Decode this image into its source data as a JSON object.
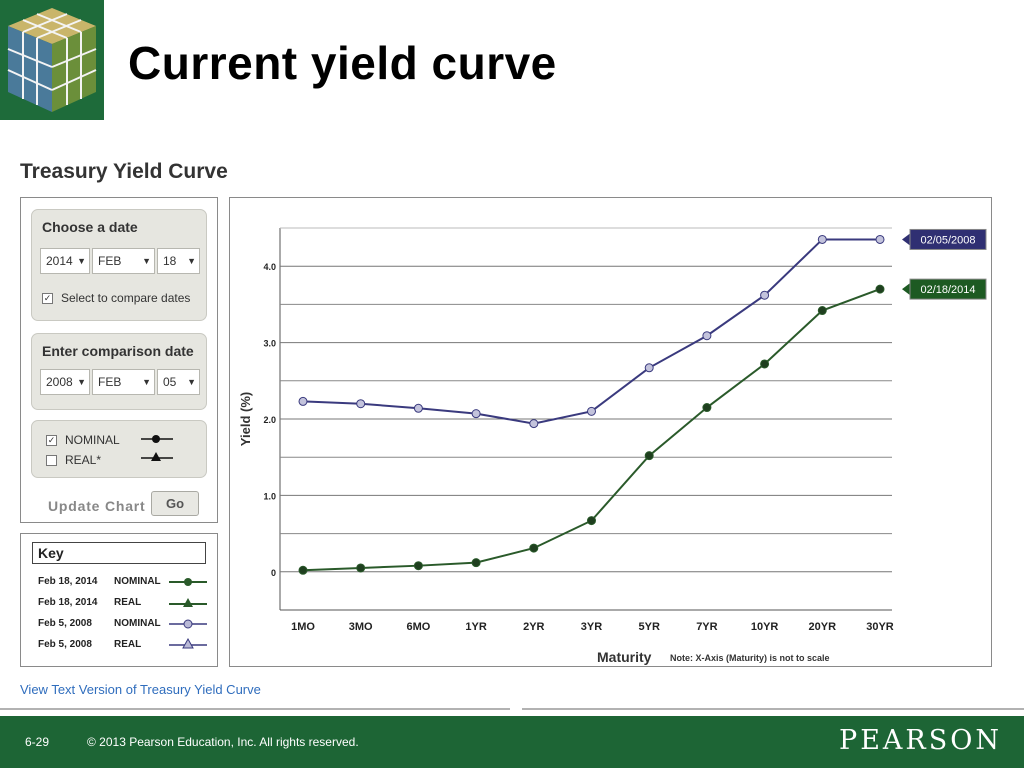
{
  "slide": {
    "title": "Current yield curve",
    "page_number": "6-29",
    "copyright": "© 2013 Pearson Education, Inc. All rights reserved.",
    "brand": "PEARSON"
  },
  "panel": {
    "title": "Treasury Yield Curve",
    "choose_date": {
      "header": "Choose a date",
      "year": "2014",
      "month": "FEB",
      "day": "18",
      "compare_checked": true,
      "compare_label": "Select to compare dates"
    },
    "comparison_date": {
      "header": "Enter comparison date",
      "year": "2008",
      "month": "FEB",
      "day": "05"
    },
    "series_toggle": {
      "nominal_label": "NOMINAL",
      "nominal_checked": true,
      "real_label": "REAL*",
      "real_checked": false
    },
    "update_label": "Update Chart",
    "go_label": "Go",
    "key": {
      "header": "Key",
      "rows": [
        {
          "date": "Feb 18, 2014",
          "type": "NOMINAL"
        },
        {
          "date": "Feb 18, 2014",
          "type": "REAL"
        },
        {
          "date": "Feb 5, 2008",
          "type": "NOMINAL"
        },
        {
          "date": "Feb 5, 2008",
          "type": "REAL"
        }
      ]
    },
    "view_text_link": "View Text Version of Treasury Yield Curve"
  },
  "colors": {
    "series_2014": "#2a5a2a",
    "series_2008": "#3a3a7e",
    "brand_green": "#1d6535",
    "link": "#2f6dbd"
  },
  "chart_data": {
    "type": "line",
    "categories": [
      "1MO",
      "3MO",
      "6MO",
      "1YR",
      "2YR",
      "3YR",
      "5YR",
      "7YR",
      "10YR",
      "20YR",
      "30YR"
    ],
    "series": [
      {
        "name": "02/05/2008",
        "values": [
          2.23,
          2.2,
          2.14,
          2.07,
          1.94,
          2.1,
          2.67,
          3.09,
          3.62,
          4.35,
          4.35
        ]
      },
      {
        "name": "02/18/2014",
        "values": [
          0.02,
          0.05,
          0.08,
          0.12,
          0.31,
          0.67,
          1.52,
          2.15,
          2.72,
          3.42,
          3.7
        ]
      }
    ],
    "y_ticks": [
      "0",
      "1.0",
      "2.0",
      "3.0",
      "4.0"
    ],
    "ylim": [
      -0.5,
      4.5
    ],
    "xlabel": "Maturity",
    "ylabel": "Yield (%)",
    "note": "Note: X-Axis (Maturity) is not to scale",
    "grid": true
  }
}
